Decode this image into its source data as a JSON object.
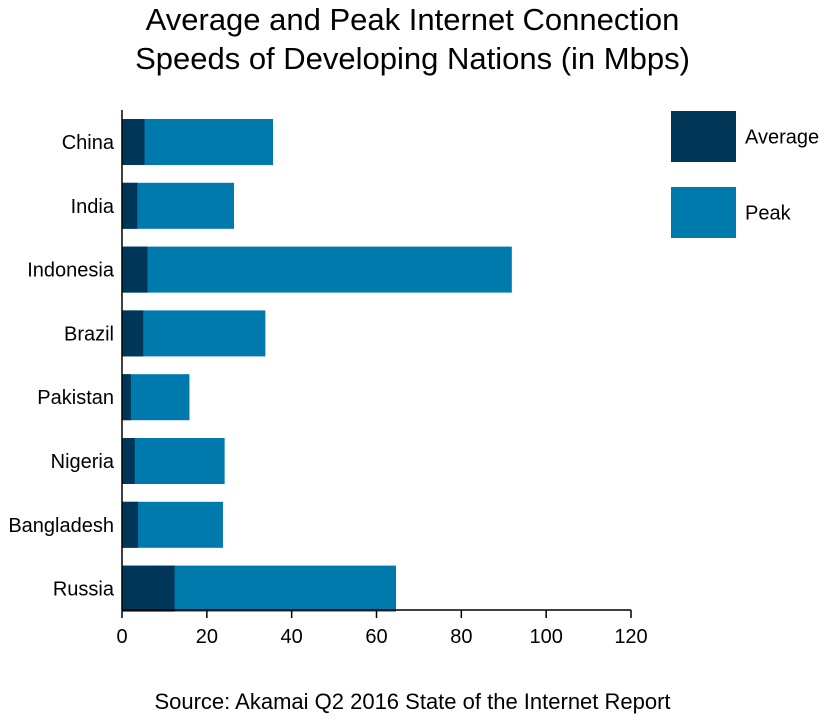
{
  "chart_data": {
    "type": "bar",
    "orientation": "horizontal",
    "title_lines": [
      "Average and Peak Internet Connection",
      "Speeds of Developing Nations (in Mbps)"
    ],
    "categories": [
      "China",
      "India",
      "Indonesia",
      "Brazil",
      "Pakistan",
      "Nigeria",
      "Bangladesh",
      "Russia"
    ],
    "series": [
      {
        "name": "Average",
        "color": "#003758",
        "values": [
          5.3,
          3.6,
          6.0,
          5.0,
          2.1,
          3.0,
          3.8,
          12.4
        ]
      },
      {
        "name": "Peak",
        "color": "#0079ad",
        "values": [
          35.6,
          26.4,
          91.9,
          33.8,
          15.9,
          24.2,
          23.8,
          64.6
        ]
      }
    ],
    "xlim": [
      0,
      120
    ],
    "x_ticks": [
      0,
      20,
      40,
      60,
      80,
      100,
      120
    ],
    "xlabel": "",
    "ylabel": "",
    "grid": false,
    "legend_position": "top-right"
  },
  "source": "Source: Akamai Q2 2016 State of the Internet Report"
}
